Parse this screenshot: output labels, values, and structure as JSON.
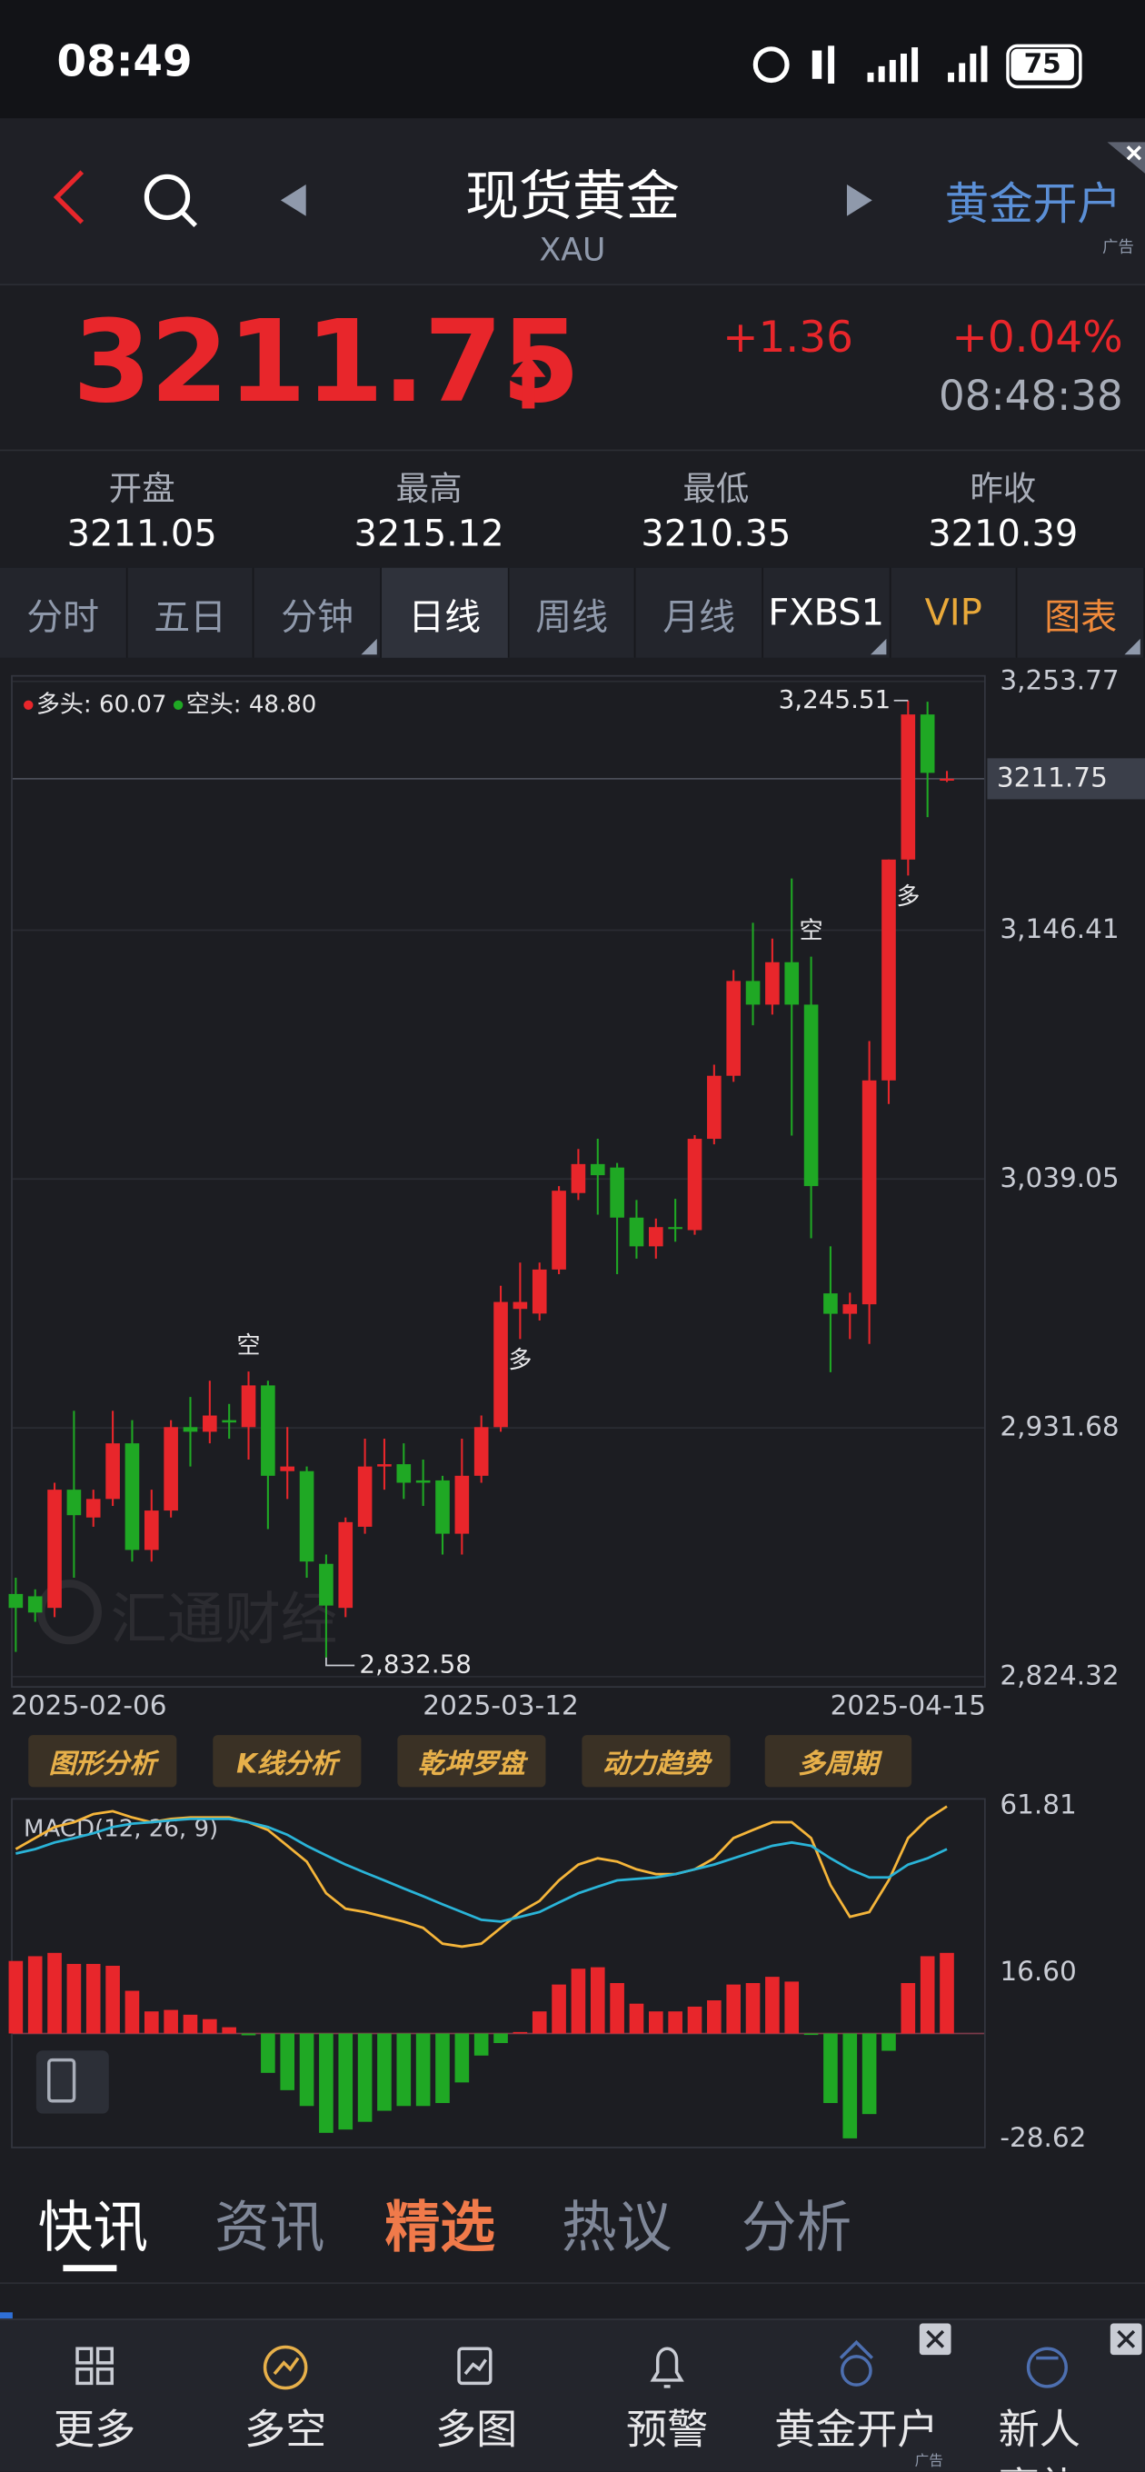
{
  "status_bar": {
    "time": "08:49",
    "battery": "75"
  },
  "header": {
    "title": "现货黄金",
    "code": "XAU",
    "ad": "黄金开户",
    "ad_tag": "广告"
  },
  "quote": {
    "price": "3211.75",
    "change": "+1.36",
    "change_pct": "+0.04%",
    "time": "08:48:38"
  },
  "stats": [
    {
      "label": "开盘",
      "value": "3211.05"
    },
    {
      "label": "最高",
      "value": "3215.12"
    },
    {
      "label": "最低",
      "value": "3210.35"
    },
    {
      "label": "昨收",
      "value": "3210.39"
    }
  ],
  "tabs": [
    "分时",
    "五日",
    "分钟",
    "日线",
    "周线",
    "月线",
    "FXBS1",
    "VIP",
    "图表"
  ],
  "watermark": "汇通财经",
  "chart_data": [
    {
      "type": "candlestick",
      "categories": [
        "2025-02-06",
        null,
        null,
        null,
        null,
        null,
        null,
        null,
        null,
        null,
        null,
        null,
        null,
        null,
        null,
        null,
        null,
        null,
        null,
        null,
        null,
        null,
        null,
        null,
        null,
        "2025-03-12",
        null,
        null,
        null,
        null,
        null,
        null,
        null,
        null,
        null,
        null,
        null,
        null,
        null,
        null,
        null,
        null,
        null,
        null,
        null,
        null,
        "2025-04-15",
        null,
        null
      ],
      "open": [
        2860,
        2859,
        2854,
        2905,
        2893,
        2901,
        2925,
        2879,
        2896,
        2932,
        2930,
        2935,
        2932,
        2950,
        2913,
        2913,
        2873,
        2854,
        2889,
        2915,
        2916,
        2909,
        2909,
        2886,
        2911,
        2932,
        2983,
        2981,
        3000,
        3033,
        3045.5,
        3044,
        3022.4,
        3010,
        3018.3,
        3017,
        3056.4,
        3083.6,
        3124.5,
        3114.3,
        3132.6,
        3114.3,
        2989.7,
        2980.9,
        2985,
        3081.6,
        3176.9,
        3239.5,
        3211.05
      ],
      "high": [
        2867,
        2862,
        2908,
        2939,
        2905,
        2939,
        2935,
        2905,
        2935,
        2945,
        2952,
        2942,
        2956,
        2952,
        2932,
        2915,
        2877,
        2893,
        2927,
        2927,
        2925,
        2918,
        2911,
        2927,
        2937,
        2993,
        3003,
        3003,
        3036,
        3052,
        3056.4,
        3046,
        3030,
        3022,
        3030.5,
        3058,
        3088.4,
        3129.2,
        3149.6,
        3142.8,
        3168.7,
        3135,
        3010,
        2990,
        3098.6,
        3176.9,
        3245.51,
        3245,
        3215.12
      ],
      "low": [
        2835,
        2848,
        2850,
        2867,
        2889,
        2898,
        2874,
        2874,
        2893,
        2915,
        2925,
        2927,
        2918,
        2888,
        2901,
        2867,
        2832.58,
        2850,
        2886,
        2905,
        2901,
        2898,
        2877,
        2877,
        2908,
        2930,
        2970,
        2978,
        2998,
        3030,
        3023.7,
        2998,
        3004.7,
        3004.7,
        3012,
        3015,
        3054,
        3081,
        3105.4,
        3110,
        3057.8,
        3013.5,
        2955.7,
        2970,
        2967.9,
        3071.4,
        3170,
        3195.2,
        3210.35
      ],
      "close": [
        2854,
        2852,
        2905,
        2894,
        2901,
        2925,
        2879,
        2896,
        2932,
        2930,
        2937,
        2934,
        2950,
        2911,
        2915,
        2874,
        2855,
        2891,
        2915,
        2916,
        2908,
        2908,
        2886,
        2911,
        2932,
        2986,
        2986,
        3000,
        3034,
        3045.5,
        3040.7,
        3022.4,
        3010,
        3018.3,
        3018,
        3056.4,
        3083.6,
        3124.5,
        3114.3,
        3132.6,
        3114.3,
        3036,
        2980.9,
        2985,
        3081.6,
        3176.9,
        3239.5,
        3214.3,
        3211.75
      ],
      "up_color": "#e8262b",
      "down_color": "#1fa824",
      "ylim": [
        2824.32,
        3253.77
      ],
      "yticks": [
        {
          "value": 3253.77,
          "label": "3,253.77"
        },
        {
          "value": 3146.41,
          "label": "3,146.41"
        },
        {
          "value": 3039.05,
          "label": "3,039.05"
        },
        {
          "value": 2931.68,
          "label": "2,931.68"
        },
        {
          "value": 2824.32,
          "label": "2,824.32"
        }
      ],
      "grid": true,
      "last_price": 3211.75,
      "high_label": {
        "value": 3245.51,
        "label": "3,245.51"
      },
      "low_label": {
        "value": 2832.58,
        "label": "2,832.58"
      },
      "indicators": [
        {
          "label": "多头: 60.07",
          "color": "#e8262b"
        },
        {
          "label": "空头: 48.80",
          "color": "#1fa824"
        }
      ],
      "signals_above": [
        null,
        null,
        null,
        null,
        null,
        null,
        null,
        null,
        null,
        null,
        null,
        null,
        "空",
        null,
        null,
        null,
        null,
        null,
        null,
        null,
        null,
        null,
        null,
        null,
        null,
        null,
        null,
        null,
        null,
        null,
        null,
        null,
        null,
        null,
        null,
        null,
        null,
        null,
        null,
        null,
        null,
        "空",
        null,
        null,
        null,
        null,
        null,
        null,
        null
      ],
      "signals_below": [
        null,
        null,
        null,
        null,
        null,
        null,
        null,
        null,
        null,
        null,
        null,
        null,
        null,
        null,
        null,
        null,
        null,
        null,
        null,
        null,
        null,
        null,
        null,
        null,
        null,
        null,
        "多",
        null,
        null,
        null,
        null,
        null,
        null,
        null,
        null,
        null,
        null,
        null,
        null,
        null,
        null,
        null,
        null,
        null,
        null,
        null,
        "多",
        null,
        null
      ]
    },
    {
      "type": "macd",
      "title": "MACD(12, 26, 9)",
      "ylim": [
        -28.62,
        61.81
      ],
      "yticks": [
        61.81,
        {
          "value": 16.6,
          "label": "16.60"
        },
        -28.62
      ],
      "grid": false,
      "histogram": [
        19.7,
        21,
        21.9,
        18.9,
        18.9,
        18.4,
        11.6,
        6,
        6.4,
        5.1,
        3.9,
        1.7,
        -0.5,
        -10.7,
        -15.4,
        -19.7,
        -27,
        -26.1,
        -24,
        -21,
        -19.7,
        -19.7,
        -18.9,
        -13.3,
        -6,
        -2.6,
        0.4,
        6,
        13.3,
        17.6,
        18,
        13.7,
        8.1,
        6,
        6,
        7.3,
        9,
        13.3,
        13.7,
        15.4,
        14.1,
        -0.4,
        -18.9,
        -28.5,
        -21.9,
        -4.7,
        13.7,
        21,
        21.9
      ],
      "up_color": "#e8262b",
      "down_color": "#1fa824",
      "series": [
        {
          "color": "#f5b53a",
          "values": [
            50.1,
            53.1,
            56.1,
            57.4,
            59.6,
            60.4,
            58.7,
            57.4,
            58.3,
            58.7,
            58.7,
            58.7,
            57.4,
            55.3,
            51,
            46.7,
            38.1,
            33.9,
            33,
            31.7,
            30.4,
            28.7,
            24.4,
            23.6,
            24.4,
            28.7,
            33,
            36,
            41.6,
            45.9,
            47.6,
            46.7,
            44.6,
            43.3,
            43.3,
            44.6,
            47.6,
            53.1,
            55.3,
            57.4,
            57.4,
            53.1,
            40.3,
            31.7,
            33,
            41.6,
            53.1,
            58.3,
            61.7
          ]
        },
        {
          "color": "#2ab4d8",
          "values": [
            48.9,
            50.1,
            51.9,
            53.1,
            54.4,
            56.1,
            57,
            57.4,
            57.9,
            58.3,
            58.3,
            58.3,
            57.4,
            56.1,
            54,
            51,
            48.4,
            45.9,
            43.7,
            41.6,
            39.4,
            37.3,
            35.1,
            33,
            30.9,
            30.4,
            31.7,
            33,
            35.6,
            38.1,
            39.9,
            41.6,
            42,
            42.4,
            43.3,
            44.6,
            45.9,
            47.6,
            49.3,
            51,
            51.9,
            51,
            47.6,
            44.6,
            42.4,
            42.4,
            45.9,
            47.6,
            50.1
          ]
        }
      ]
    }
  ],
  "tools": [
    "图形分析",
    "K线分析",
    "乾坤罗盘",
    "动力趋势",
    "多周期"
  ],
  "news_tabs": [
    "快讯",
    "资讯",
    "精选",
    "热议",
    "分析"
  ],
  "nav": [
    "更多",
    "多空",
    "多图",
    "预警",
    "黄金开户",
    "新人豪礼"
  ],
  "nav_ad_tag": "广告"
}
